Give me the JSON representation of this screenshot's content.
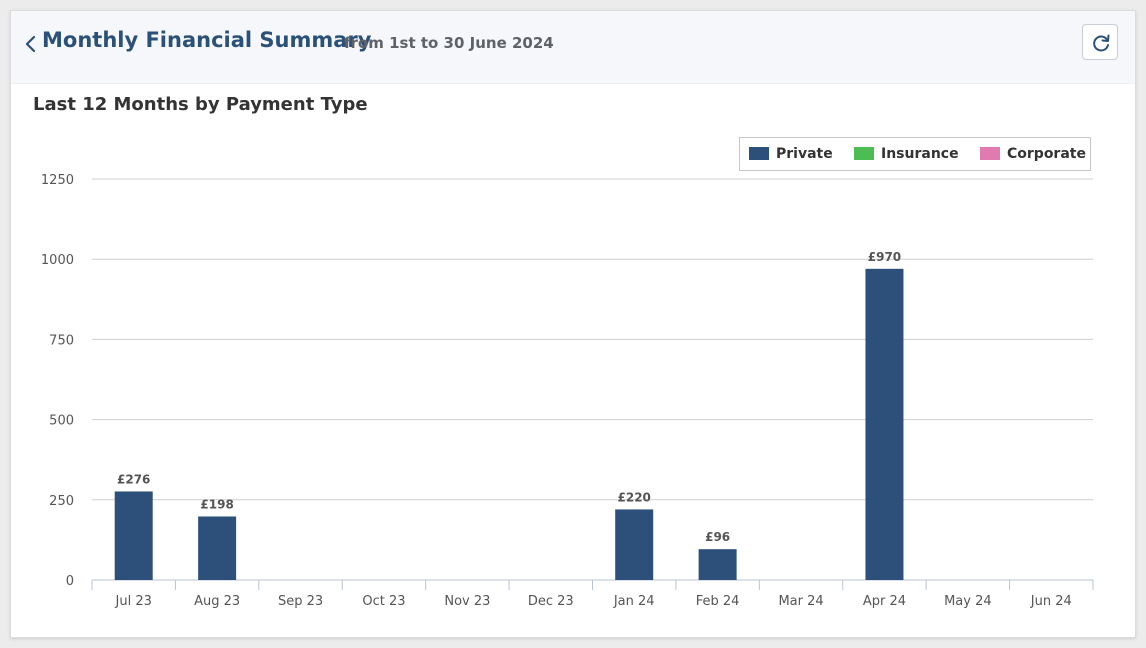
{
  "header": {
    "title": "Monthly Financial Summary",
    "subtitle": "from 1st to 30 June 2024",
    "back_icon": "chevron-left-icon",
    "refresh_icon": "refresh-icon"
  },
  "section": {
    "title": "Last 12 Months by Payment Type"
  },
  "colors": {
    "title": "#2b5178",
    "private": "#2c5079",
    "insurance": "#4cbd52",
    "corporate": "#e07baf",
    "grid": "#cfcfcf"
  },
  "legend": {
    "placement": "top-right",
    "items": [
      {
        "label": "Private",
        "color": "#2c5079"
      },
      {
        "label": "Insurance",
        "color": "#4cbd52"
      },
      {
        "label": "Corporate",
        "color": "#e07baf"
      }
    ]
  },
  "chart_data": {
    "type": "bar",
    "title": "Last 12 Months by Payment Type",
    "xlabel": "",
    "ylabel": "",
    "ylim": [
      0,
      1250
    ],
    "yticks": [
      0,
      250,
      500,
      750,
      1000,
      1250
    ],
    "grid": true,
    "categories": [
      "Jul 23",
      "Aug 23",
      "Sep 23",
      "Oct 23",
      "Nov 23",
      "Dec 23",
      "Jan 24",
      "Feb 24",
      "Mar 24",
      "Apr 24",
      "May 24",
      "Jun 24"
    ],
    "series": [
      {
        "name": "Private",
        "color": "#2c5079",
        "values": [
          276,
          198,
          0,
          0,
          0,
          0,
          220,
          96,
          0,
          970,
          0,
          0
        ],
        "labels": [
          "£276",
          "£198",
          "",
          "",
          "",
          "",
          "£220",
          "£96",
          "",
          "£970",
          "",
          ""
        ]
      },
      {
        "name": "Insurance",
        "color": "#4cbd52",
        "values": [
          0,
          0,
          0,
          0,
          0,
          0,
          0,
          0,
          0,
          0,
          0,
          0
        ],
        "labels": [
          "",
          "",
          "",
          "",
          "",
          "",
          "",
          "",
          "",
          "",
          "",
          ""
        ]
      },
      {
        "name": "Corporate",
        "color": "#e07baf",
        "values": [
          0,
          0,
          0,
          0,
          0,
          0,
          0,
          0,
          0,
          0,
          0,
          0
        ],
        "labels": [
          "",
          "",
          "",
          "",
          "",
          "",
          "",
          "",
          "",
          "",
          "",
          ""
        ]
      }
    ]
  }
}
